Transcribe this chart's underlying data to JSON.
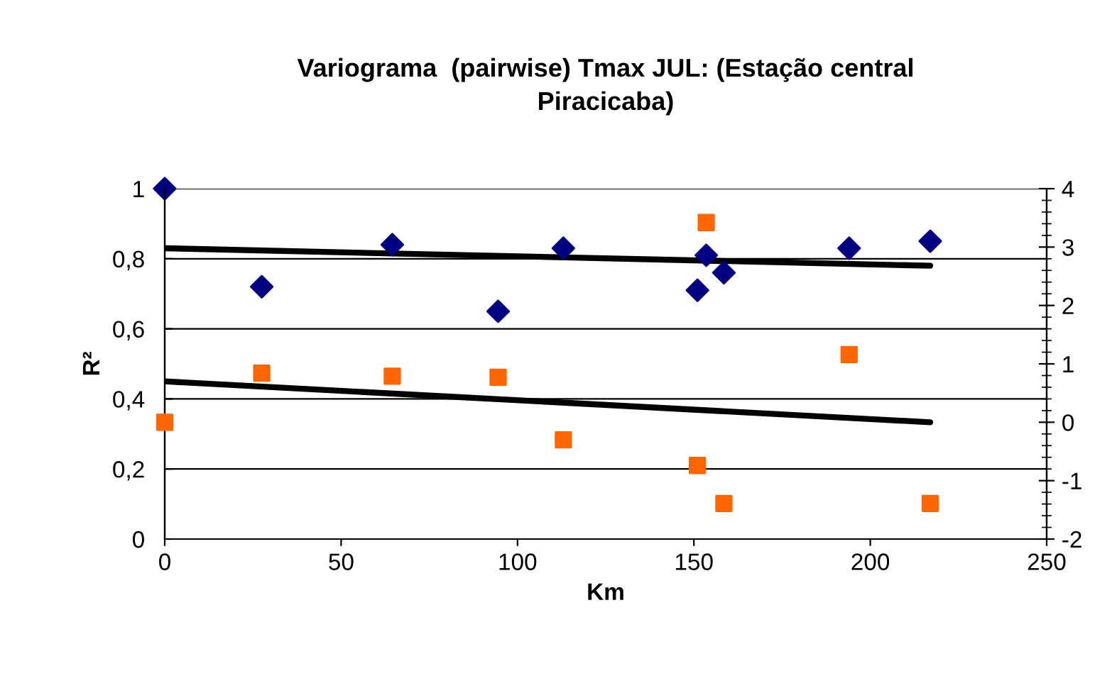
{
  "chart_data": {
    "type": "scatter",
    "title": "Variograma  (pairwise) Tmax JUL: (Estação central\nPiracicaba)",
    "xlabel": "Km",
    "ylabel": "R²",
    "grid": "y",
    "xlim": [
      0,
      250
    ],
    "xticks": [
      0,
      50,
      100,
      150,
      200,
      250
    ],
    "ylim": [
      0,
      1
    ],
    "yticks": [
      0,
      {
        "value": 0.2,
        "label": "0,2"
      },
      {
        "value": 0.4,
        "label": "0,4"
      },
      {
        "value": 0.6,
        "label": "0,6"
      },
      {
        "value": 0.8,
        "label": "0,8"
      },
      1
    ],
    "y2lim": [
      -2,
      4
    ],
    "y2ticks": [
      -2,
      -1,
      0,
      1,
      2,
      3,
      4
    ],
    "series": [
      {
        "marker": "diamond",
        "color": "#000080",
        "x": [
          0,
          27.5,
          64.5,
          94.5,
          113,
          151,
          153.5,
          158.5,
          194,
          217
        ],
        "values": [
          1.0,
          0.72,
          0.84,
          0.65,
          0.83,
          0.71,
          0.81,
          0.76,
          0.83,
          0.85
        ]
      },
      {
        "marker": "square",
        "color": "#ff6600",
        "axis": "y2",
        "x": [
          0,
          27.5,
          64.5,
          94.5,
          113,
          151,
          153.5,
          158.5,
          194,
          217
        ],
        "values": [
          0.0,
          0.84,
          0.79,
          0.77,
          -0.3,
          -0.74,
          3.42,
          -1.39,
          1.16,
          -1.39
        ]
      },
      {
        "type": "line",
        "marker": "none",
        "color": "#000000",
        "x": [
          0,
          217
        ],
        "values": [
          0.83,
          0.78
        ]
      },
      {
        "type": "line",
        "marker": "none",
        "color": "#000000",
        "axis": "y2",
        "x": [
          0,
          217
        ],
        "values": [
          0.7,
          0.0
        ]
      }
    ]
  }
}
